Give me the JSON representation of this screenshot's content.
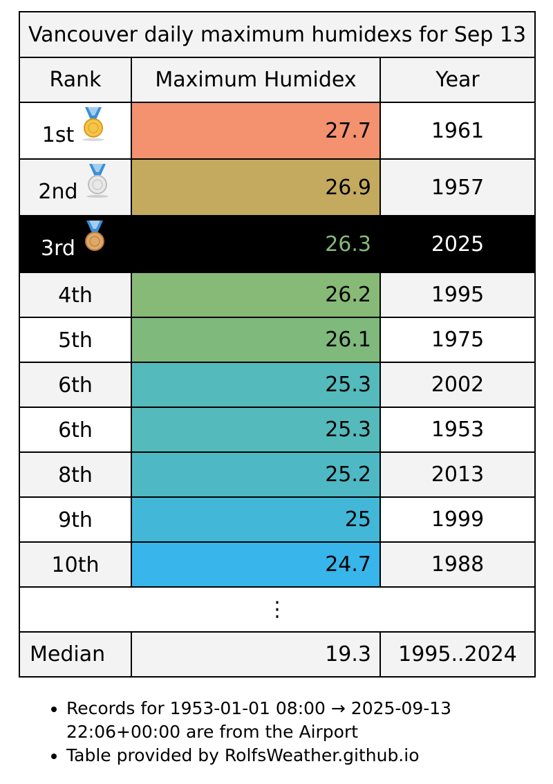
{
  "table": {
    "title": "Vancouver daily maximum humidexs for Sep 13",
    "headers": {
      "rank": "Rank",
      "value": "Maximum Humidex",
      "year": "Year"
    },
    "rows": [
      {
        "rank": "1st",
        "medal": "gold-medal-icon",
        "value": "27.7",
        "year": "1961",
        "color": "#f4916e",
        "row_bg": "#ffffff"
      },
      {
        "rank": "2nd",
        "medal": "silver-medal-icon",
        "value": "26.9",
        "year": "1957",
        "color": "#c4aa5e",
        "row_bg": "#f3f3f3"
      },
      {
        "rank": "3rd",
        "medal": "bronze-medal-icon",
        "value": "26.3",
        "year": "2025",
        "color": "#000000",
        "value_color": "#85ba76",
        "row_bg": "#000000",
        "highlight": true
      },
      {
        "rank": "4th",
        "value": "26.2",
        "year": "1995",
        "color": "#87ba76",
        "row_bg": "#f3f3f3"
      },
      {
        "rank": "5th",
        "value": "26.1",
        "year": "1975",
        "color": "#7fb97c",
        "row_bg": "#ffffff"
      },
      {
        "rank": "6th",
        "value": "25.3",
        "year": "2002",
        "color": "#55babb",
        "row_bg": "#f3f3f3"
      },
      {
        "rank": "6th",
        "value": "25.3",
        "year": "1953",
        "color": "#55babb",
        "row_bg": "#ffffff"
      },
      {
        "rank": "8th",
        "value": "25.2",
        "year": "2013",
        "color": "#4eb9c4",
        "row_bg": "#f3f3f3"
      },
      {
        "rank": "9th",
        "value": "25",
        "year": "1999",
        "color": "#43b7d8",
        "row_bg": "#ffffff"
      },
      {
        "rank": "10th",
        "value": "24.7",
        "year": "1988",
        "color": "#38b5ea",
        "row_bg": "#f3f3f3"
      }
    ],
    "ellipsis": "⋮",
    "median": {
      "label": "Median",
      "value": "19.3",
      "year": "1995..2024"
    }
  },
  "notes": [
    "Records for 1953-01-01 08:00 → 2025-09-13 22:06+00:00 are from the Airport",
    "Table provided by RolfsWeather.github.io"
  ]
}
